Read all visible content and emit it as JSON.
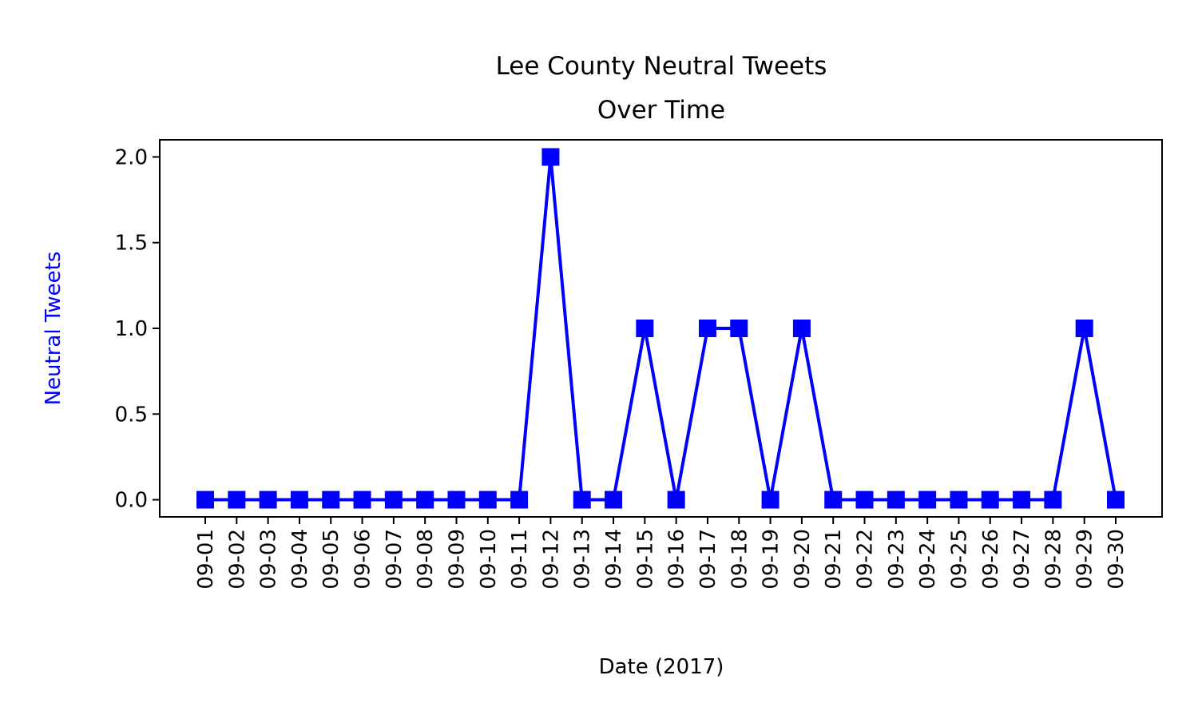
{
  "chart_data": {
    "type": "line",
    "title_line1": "Lee County Neutral Tweets",
    "title_line2": "Over Time",
    "xlabel": "Date (2017)",
    "ylabel": "Neutral Tweets",
    "ylabel_color": "#0000ff",
    "line_color": "#0000ff",
    "marker": "square",
    "ylim": [
      -0.1,
      2.1
    ],
    "yticks": [
      "0.0",
      "0.5",
      "1.0",
      "1.5",
      "2.0"
    ],
    "categories": [
      "09-01",
      "09-02",
      "09-03",
      "09-04",
      "09-05",
      "09-06",
      "09-07",
      "09-08",
      "09-09",
      "09-10",
      "09-11",
      "09-12",
      "09-13",
      "09-14",
      "09-15",
      "09-16",
      "09-17",
      "09-18",
      "09-19",
      "09-20",
      "09-21",
      "09-22",
      "09-23",
      "09-24",
      "09-25",
      "09-26",
      "09-27",
      "09-28",
      "09-29",
      "09-30"
    ],
    "series": [
      {
        "values": [
          0,
          0,
          0,
          0,
          0,
          0,
          0,
          0,
          0,
          0,
          0,
          2,
          0,
          0,
          1,
          0,
          1,
          1,
          0,
          1,
          0,
          0,
          0,
          0,
          0,
          0,
          0,
          0,
          1,
          0
        ]
      }
    ],
    "grid": false,
    "legend": false
  }
}
